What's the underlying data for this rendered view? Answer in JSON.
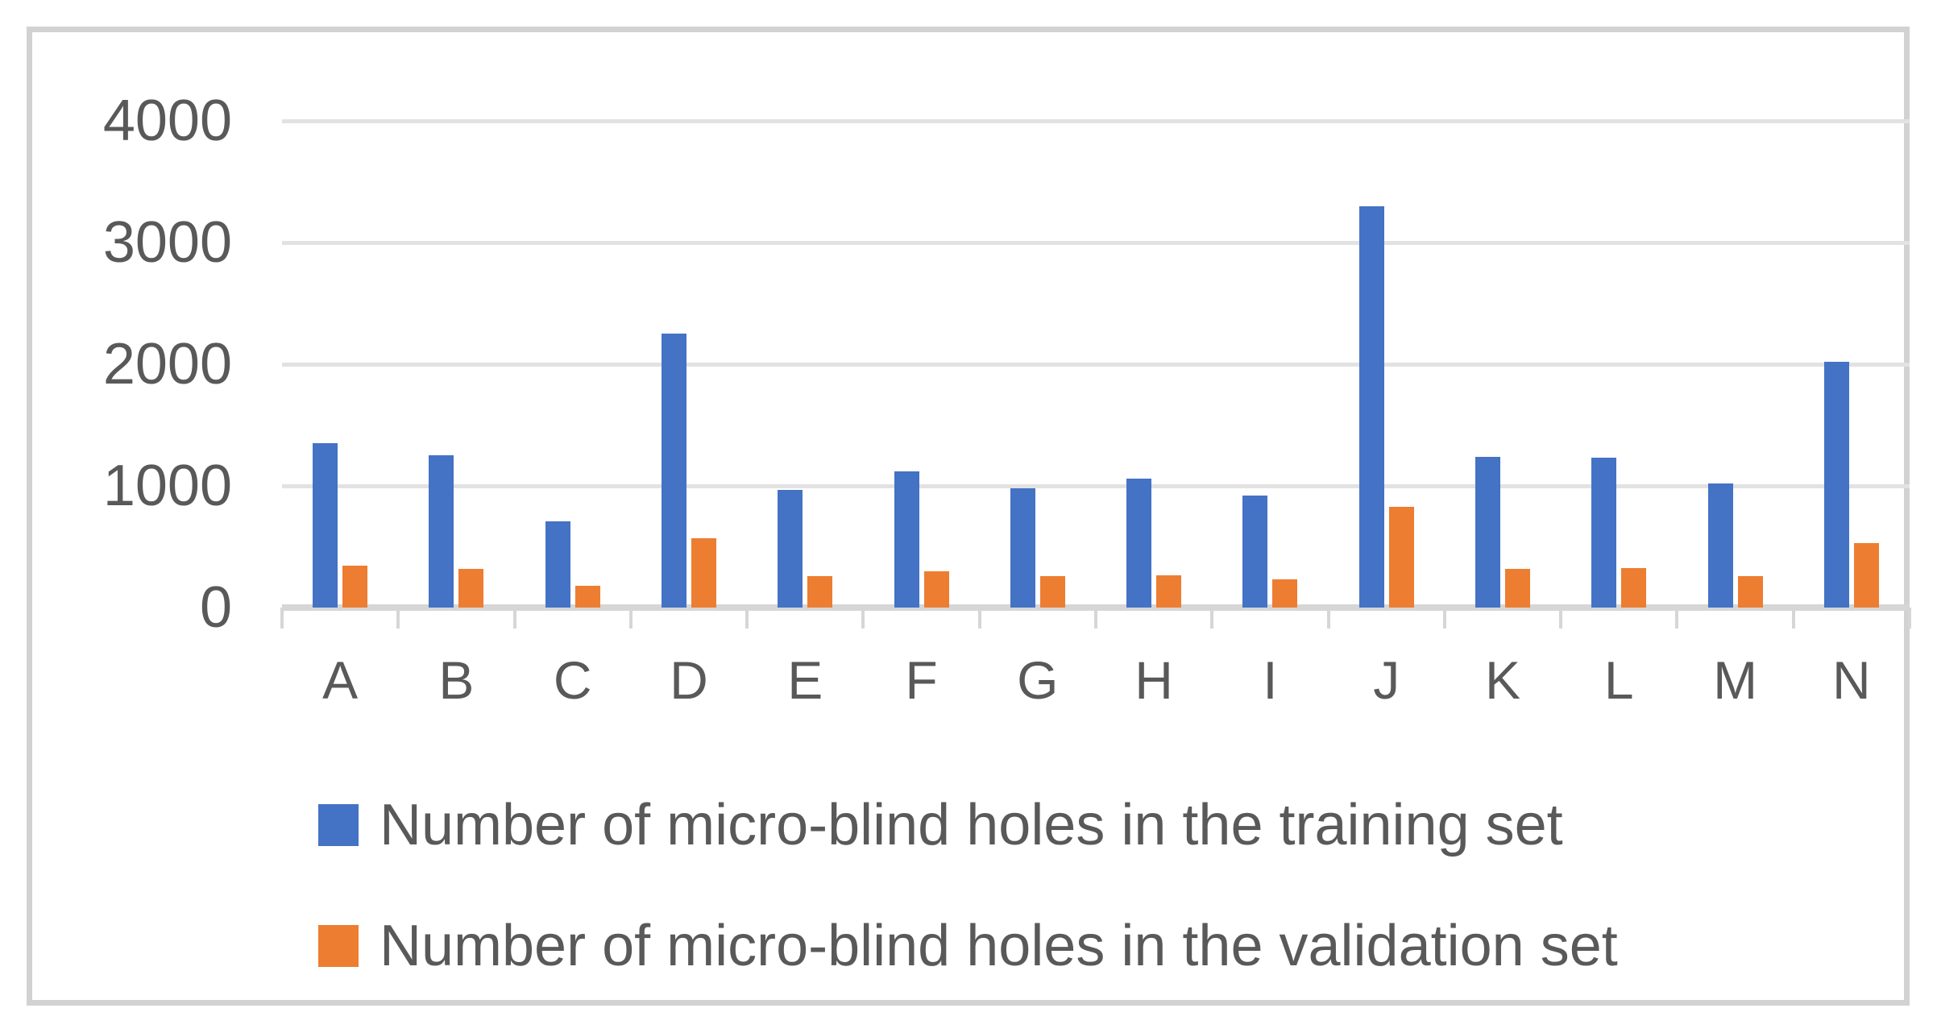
{
  "chart_data": {
    "type": "bar",
    "title": "",
    "categories": [
      "A",
      "B",
      "C",
      "D",
      "E",
      "F",
      "G",
      "H",
      "I",
      "J",
      "K",
      "L",
      "M",
      "N"
    ],
    "series": [
      {
        "name": "Number of micro-blind holes in the training set",
        "color": "#4472C4",
        "values": [
          1350,
          1250,
          710,
          2250,
          970,
          1120,
          980,
          1060,
          920,
          3300,
          1240,
          1230,
          1020,
          2020
        ]
      },
      {
        "name": "Number of micro-blind holes in the validation set",
        "color": "#ED7D31",
        "values": [
          345,
          320,
          180,
          570,
          255,
          300,
          255,
          265,
          230,
          830,
          320,
          325,
          255,
          530
        ]
      }
    ],
    "y_axis": {
      "min": 0,
      "max": 4000,
      "ticks": [
        0,
        1000,
        2000,
        3000,
        4000
      ]
    },
    "xlabel": "",
    "ylabel": "",
    "grid": true,
    "legend_position": "bottom-left"
  },
  "colors": {
    "series_blue": "#4472C4",
    "series_orange": "#ED7D31",
    "text_gray": "#595959",
    "gridline": "#e2e2e2",
    "axis_line": "#d6d6d6",
    "frame_border": "#d2d2d2"
  }
}
